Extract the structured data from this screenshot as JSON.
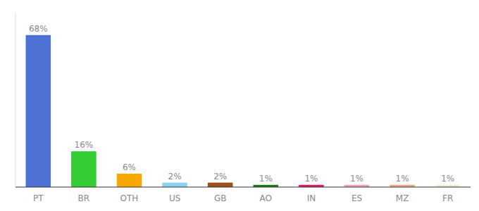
{
  "chart_data": {
    "type": "bar",
    "categories": [
      "PT",
      "BR",
      "OTH",
      "US",
      "GB",
      "AO",
      "IN",
      "ES",
      "MZ",
      "FR"
    ],
    "values": [
      68,
      16,
      6,
      2,
      2,
      1,
      1,
      1,
      1,
      1
    ],
    "value_labels": [
      "68%",
      "16%",
      "6%",
      "2%",
      "2%",
      "1%",
      "1%",
      "1%",
      "1%",
      "1%"
    ],
    "colors": [
      "#4d72d4",
      "#33cc33",
      "#f5a800",
      "#88d4f0",
      "#9b4f1a",
      "#1a7a1a",
      "#e8195a",
      "#f0a0b8",
      "#e8a888",
      "#f0ecd0"
    ],
    "ylim": [
      0,
      78
    ],
    "data_labels": true,
    "tick_labels": "x"
  }
}
